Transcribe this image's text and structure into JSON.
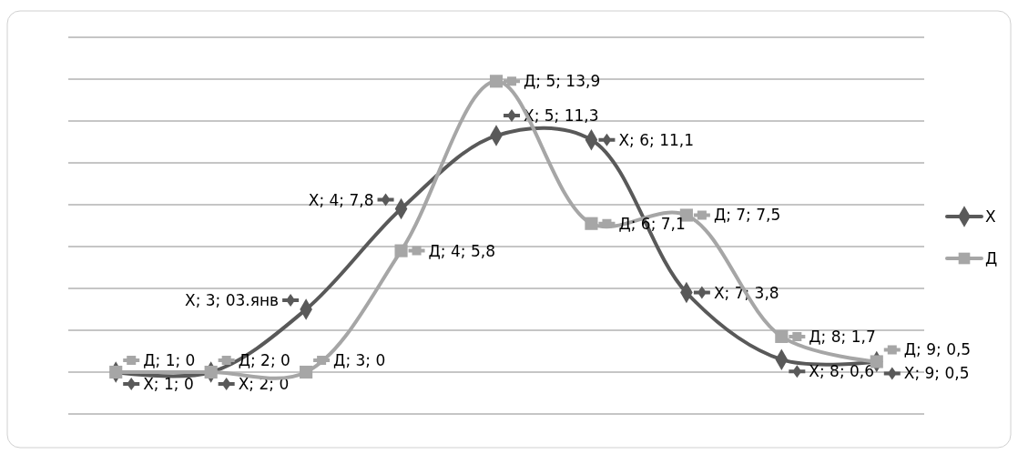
{
  "chart_data": {
    "type": "line",
    "categories": [
      null,
      null,
      null,
      null,
      null,
      null,
      null,
      null,
      null
    ],
    "series": [
      {
        "name": "Х",
        "color": "#595959",
        "marker": "diamond",
        "values": [
          0,
          0,
          3,
          7.8,
          11.3,
          11.1,
          3.8,
          0.6,
          0.5
        ],
        "value_labels": [
          "Х; 1; 0",
          "Х; 2; 0",
          "Х; 3; 03.янв",
          "Х; 4; 7,8",
          "Х; 5; 11,3",
          "Х; 6; 11,1",
          "Х; 7; 3,8",
          "Х; 8; 0,6",
          "Х; 9; 0,5"
        ]
      },
      {
        "name": "Д",
        "color": "#a6a6a6",
        "marker": "square",
        "values": [
          0,
          0,
          0,
          5.8,
          13.9,
          7.1,
          7.5,
          1.7,
          0.5
        ],
        "value_labels": [
          "Д; 1; 0",
          "Д; 2; 0",
          "Д; 3; 0",
          "Д; 4; 5,8",
          "Д; 5; 13,9",
          "Д; 6; 7,1",
          "Д; 7; 7,5",
          "Д; 8; 1,7",
          "Д; 9; 0,5"
        ]
      }
    ],
    "ylim": [
      -2,
      16
    ],
    "yticks": [
      {
        "value": -2,
        "label": null
      },
      {
        "value": 0,
        "label": null
      },
      {
        "value": 2,
        "label": null
      },
      {
        "value": 4,
        "label": null
      },
      {
        "value": 6,
        "label": null
      },
      {
        "value": 8,
        "label": null
      },
      {
        "value": 10,
        "label": null
      },
      {
        "value": 12,
        "label": null
      },
      {
        "value": 14,
        "label": null
      },
      {
        "value": 16,
        "label": null
      }
    ],
    "grid": "y",
    "legend": "right",
    "line_style": "solid"
  }
}
